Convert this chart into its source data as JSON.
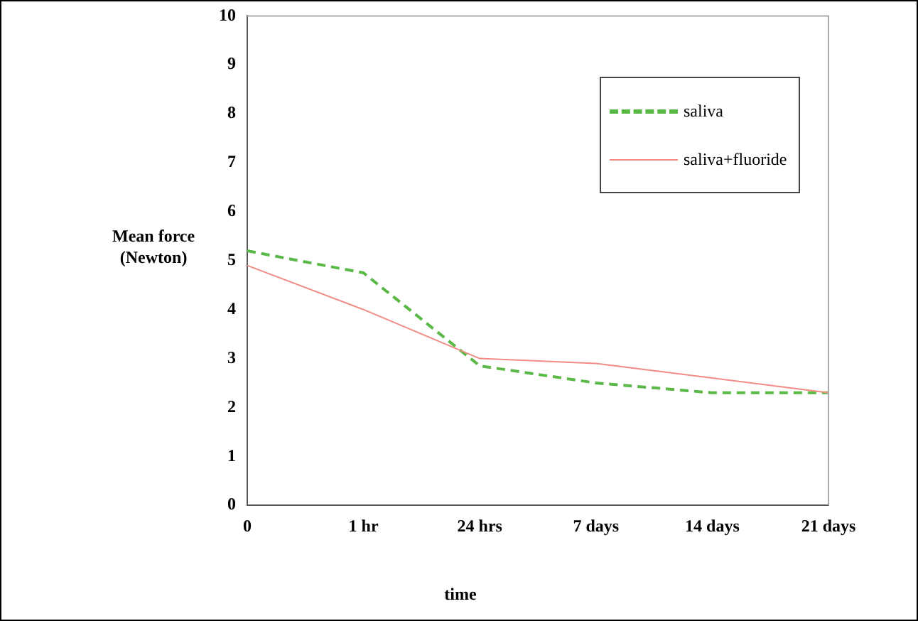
{
  "chart_data": {
    "type": "line",
    "xlabel": "time",
    "ylabel": "Mean force\n(Newton)",
    "categories": [
      "0",
      "1 hr",
      "24 hrs",
      "7 days",
      "14 days",
      "21 days"
    ],
    "series": [
      {
        "name": "saliva",
        "color": "#5ab946",
        "values": [
          5.2,
          4.75,
          2.85,
          2.5,
          2.3,
          2.3
        ],
        "line_style": "dashed"
      },
      {
        "name": "saliva+fluoride",
        "color": "#f08c84",
        "values": [
          4.9,
          4.0,
          3.0,
          2.9,
          2.6,
          2.3
        ],
        "line_style": "solid"
      }
    ],
    "ylim": [
      0,
      10
    ],
    "yticks": [
      0,
      1,
      2,
      3,
      4,
      5,
      6,
      7,
      8,
      9,
      10
    ],
    "grid": false,
    "legend": "top right",
    "marker": "none"
  }
}
